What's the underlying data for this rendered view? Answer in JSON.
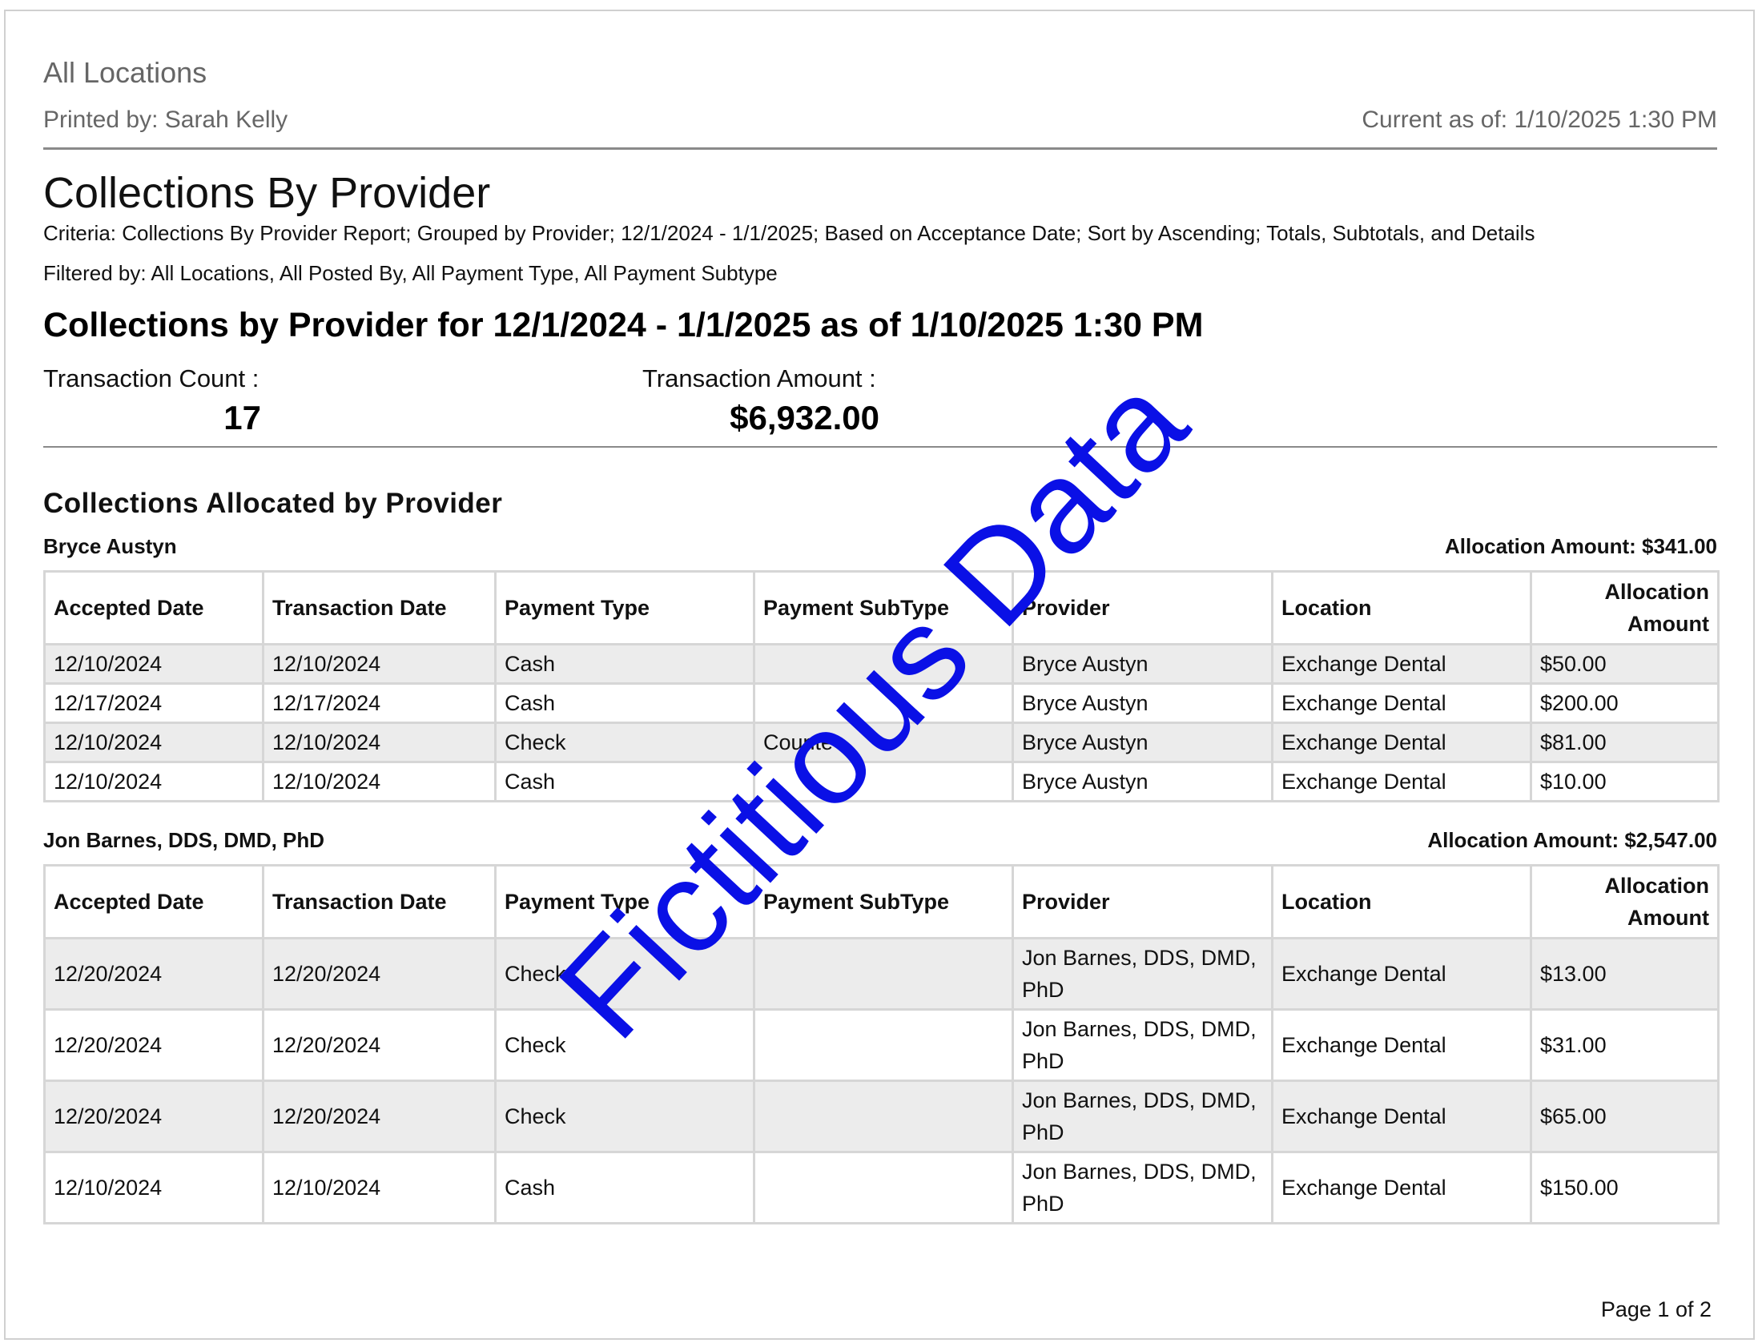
{
  "header": {
    "locations": "All Locations",
    "printed_by": "Printed by: Sarah Kelly",
    "current_as_of": "Current as of: 1/10/2025 1:30 PM"
  },
  "report": {
    "title": "Collections By Provider",
    "criteria": "Criteria: Collections By Provider Report; Grouped by Provider; 12/1/2024 - 1/1/2025; Based on Acceptance Date; Sort by Ascending; Totals, Subtotals, and Details",
    "filtered_by": "Filtered by: All Locations, All Posted By, All Payment Type, All Payment Subtype",
    "heading": "Collections by Provider for 12/1/2024 - 1/1/2025 as of 1/10/2025 1:30 PM"
  },
  "summary": {
    "count_label": "Transaction Count :",
    "count_value": "17",
    "amount_label": "Transaction Amount :",
    "amount_value": "$6,932.00"
  },
  "section_title": "Collections Allocated by Provider",
  "columns": [
    "Accepted Date",
    "Transaction Date",
    "Payment Type",
    "Payment SubType",
    "Provider",
    "Location",
    "Allocation Amount"
  ],
  "groups": [
    {
      "name": "Bryce Austyn",
      "allocation": "Allocation Amount: $341.00",
      "rows": [
        [
          "12/10/2024",
          "12/10/2024",
          "Cash",
          "",
          "Bryce Austyn",
          "Exchange Dental",
          "$50.00"
        ],
        [
          "12/17/2024",
          "12/17/2024",
          "Cash",
          "",
          "Bryce Austyn",
          "Exchange Dental",
          "$200.00"
        ],
        [
          "12/10/2024",
          "12/10/2024",
          "Check",
          "Counte",
          "Bryce Austyn",
          "Exchange Dental",
          "$81.00"
        ],
        [
          "12/10/2024",
          "12/10/2024",
          "Cash",
          "",
          "Bryce Austyn",
          "Exchange Dental",
          "$10.00"
        ]
      ]
    },
    {
      "name": "Jon Barnes, DDS, DMD, PhD",
      "allocation": "Allocation Amount: $2,547.00",
      "rows": [
        [
          "12/20/2024",
          "12/20/2024",
          "Check",
          "",
          "Jon Barnes, DDS, DMD, PhD",
          "Exchange Dental",
          "$13.00"
        ],
        [
          "12/20/2024",
          "12/20/2024",
          "Check",
          "",
          "Jon Barnes, DDS, DMD, PhD",
          "Exchange Dental",
          "$31.00"
        ],
        [
          "12/20/2024",
          "12/20/2024",
          "Check",
          "",
          "Jon Barnes, DDS, DMD, PhD",
          "Exchange Dental",
          "$65.00"
        ],
        [
          "12/10/2024",
          "12/10/2024",
          "Cash",
          "",
          "Jon Barnes, DDS, DMD, PhD",
          "Exchange Dental",
          "$150.00"
        ]
      ]
    }
  ],
  "watermark": "Fictitious Data",
  "footer": {
    "page": "Page 1 of 2"
  }
}
